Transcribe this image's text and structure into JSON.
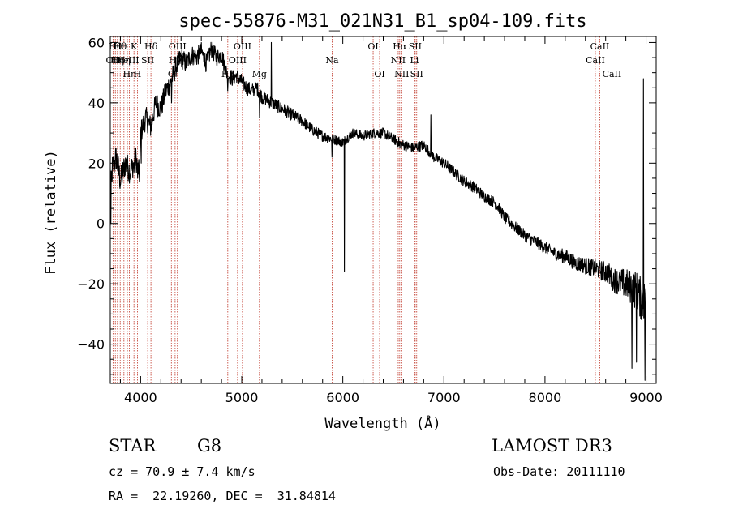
{
  "chart_data": {
    "type": "line",
    "title": "spec-55876-M31_021N31_B1_sp04-109.fits",
    "xlabel": "Wavelength (Å)",
    "ylabel": "Flux (relative)",
    "xlim": [
      3700,
      9100
    ],
    "ylim": [
      -53,
      62
    ],
    "xticks": [
      4000,
      5000,
      6000,
      7000,
      8000,
      9000
    ],
    "yticks": [
      -40,
      -20,
      0,
      20,
      40,
      60
    ],
    "series": [
      {
        "name": "flux",
        "anchors": [
          [
            3700,
            8
          ],
          [
            3720,
            18
          ],
          [
            3760,
            22
          ],
          [
            3800,
            14
          ],
          [
            3850,
            20
          ],
          [
            3900,
            17
          ],
          [
            3950,
            22
          ],
          [
            3990,
            16
          ],
          [
            4000,
            30
          ],
          [
            4050,
            35
          ],
          [
            4100,
            32
          ],
          [
            4150,
            40
          ],
          [
            4200,
            38
          ],
          [
            4250,
            44
          ],
          [
            4300,
            47
          ],
          [
            4350,
            52
          ],
          [
            4400,
            55
          ],
          [
            4450,
            53
          ],
          [
            4500,
            56
          ],
          [
            4550,
            55
          ],
          [
            4600,
            57
          ],
          [
            4650,
            53
          ],
          [
            4700,
            58
          ],
          [
            4750,
            55
          ],
          [
            4800,
            56
          ],
          [
            4850,
            50
          ],
          [
            4900,
            48
          ],
          [
            4950,
            49
          ],
          [
            5000,
            47
          ],
          [
            5050,
            45
          ],
          [
            5100,
            44
          ],
          [
            5150,
            45
          ],
          [
            5200,
            42
          ],
          [
            5300,
            40
          ],
          [
            5400,
            38
          ],
          [
            5500,
            36
          ],
          [
            5600,
            34
          ],
          [
            5700,
            31
          ],
          [
            5800,
            29
          ],
          [
            5900,
            28
          ],
          [
            6000,
            27
          ],
          [
            6100,
            30
          ],
          [
            6200,
            29
          ],
          [
            6300,
            30
          ],
          [
            6400,
            30
          ],
          [
            6500,
            28
          ],
          [
            6600,
            26
          ],
          [
            6700,
            25
          ],
          [
            6800,
            26
          ],
          [
            6900,
            22
          ],
          [
            7000,
            20
          ],
          [
            7100,
            17
          ],
          [
            7200,
            14
          ],
          [
            7300,
            12
          ],
          [
            7400,
            9
          ],
          [
            7500,
            7
          ],
          [
            7550,
            5
          ],
          [
            7600,
            2
          ],
          [
            7700,
            -1
          ],
          [
            7800,
            -4
          ],
          [
            7900,
            -6
          ],
          [
            8000,
            -8
          ],
          [
            8100,
            -10
          ],
          [
            8200,
            -11
          ],
          [
            8300,
            -13
          ],
          [
            8400,
            -14
          ],
          [
            8500,
            -15
          ],
          [
            8600,
            -16
          ],
          [
            8700,
            -19
          ],
          [
            8800,
            -20
          ],
          [
            8900,
            -22
          ],
          [
            8950,
            -25
          ],
          [
            9000,
            -27
          ]
        ],
        "features": [
          [
            3705,
            0
          ],
          [
            3935,
            17
          ],
          [
            3970,
            15
          ],
          [
            4005,
            20
          ],
          [
            4305,
            40
          ],
          [
            4862,
            44
          ],
          [
            5176,
            35
          ],
          [
            5292,
            60
          ],
          [
            5893,
            22
          ],
          [
            6015,
            -16
          ],
          [
            6565,
            25
          ],
          [
            6870,
            36
          ],
          [
            7610,
            0
          ],
          [
            8545,
            -13
          ],
          [
            8665,
            -22
          ],
          [
            8860,
            -48
          ],
          [
            8905,
            -46
          ],
          [
            8925,
            -20
          ],
          [
            8975,
            48
          ],
          [
            8990,
            -52
          ],
          [
            9000,
            20
          ]
        ],
        "noise": [
          [
            3700,
            5
          ],
          [
            4000,
            4
          ],
          [
            4400,
            3.5
          ],
          [
            5000,
            2.5
          ],
          [
            6000,
            1.6
          ],
          [
            7000,
            1.8
          ],
          [
            8000,
            2.0
          ],
          [
            8500,
            3.0
          ],
          [
            8800,
            5.0
          ],
          [
            9000,
            8.0
          ]
        ]
      }
    ],
    "lines": [
      {
        "w": 3727,
        "row": 2,
        "label": "OII"
      },
      {
        "w": 3750,
        "row": 1,
        "label": "Hθ"
      },
      {
        "w": 3771,
        "row": 2,
        "label": "Hη"
      },
      {
        "w": 3798,
        "row": 1,
        "label": "Hθ"
      },
      {
        "w": 3835,
        "row": 2,
        "label": "Hη"
      },
      {
        "w": 3869,
        "row": 2,
        "label": "NeIII"
      },
      {
        "w": 3889,
        "row": 3,
        "label": "Hη"
      },
      {
        "w": 3934,
        "row": 1,
        "label": "K"
      },
      {
        "w": 3968,
        "row": 3,
        "label": "H"
      },
      {
        "w": 4070,
        "row": 2,
        "label": "SII"
      },
      {
        "w": 4102,
        "row": 1,
        "label": "Hδ"
      },
      {
        "w": 4304,
        "row": 3,
        "label": "G"
      },
      {
        "w": 4341,
        "row": 2,
        "label": "Hγ"
      },
      {
        "w": 4364,
        "row": 1,
        "label": "OIII"
      },
      {
        "w": 4862,
        "row": 3,
        "label": "Hβ"
      },
      {
        "w": 4959,
        "row": 2,
        "label": "OIII"
      },
      {
        "w": 5007,
        "row": 1,
        "label": "OIII"
      },
      {
        "w": 5175,
        "row": 3,
        "label": "Mg"
      },
      {
        "w": 5894,
        "row": 2,
        "label": "Na"
      },
      {
        "w": 6300,
        "row": 1,
        "label": "OI"
      },
      {
        "w": 6364,
        "row": 3,
        "label": "OI"
      },
      {
        "w": 6548,
        "row": 2,
        "label": "NII"
      },
      {
        "w": 6563,
        "row": 1,
        "label": "Hα"
      },
      {
        "w": 6583,
        "row": 3,
        "label": "NII"
      },
      {
        "w": 6708,
        "row": 2,
        "label": "Li"
      },
      {
        "w": 6716,
        "row": 1,
        "label": "SII"
      },
      {
        "w": 6731,
        "row": 3,
        "label": "SII"
      },
      {
        "w": 8498,
        "row": 2,
        "label": "CaII"
      },
      {
        "w": 8542,
        "row": 1,
        "label": "CaII"
      },
      {
        "w": 8662,
        "row": 3,
        "label": "CaII"
      }
    ]
  },
  "info": {
    "object_class": "STAR",
    "subclass": "G8",
    "cz": "cz = 70.9 ± 7.4 km/s",
    "coords": "RA =  22.19260, DEC =  31.84814",
    "survey": "LAMOST DR3",
    "obs_date": "Obs-Date: 20111110"
  }
}
